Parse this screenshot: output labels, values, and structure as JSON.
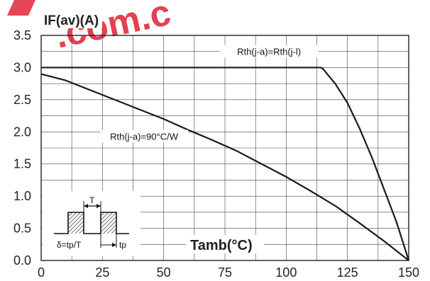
{
  "watermark": {
    "text": ".com.c",
    "color": "#e0263a"
  },
  "chart_data": {
    "type": "line",
    "title": "",
    "xlabel": "Tamb(°C)",
    "ylabel": "IF(av)(A)",
    "xlim": [
      0,
      150
    ],
    "ylim": [
      0,
      3.5
    ],
    "xticks": [
      0,
      25,
      50,
      75,
      100,
      125,
      150
    ],
    "yticks": [
      0.0,
      0.5,
      1.0,
      1.5,
      2.0,
      2.5,
      3.0,
      3.5
    ],
    "xtick_labels": [
      "0",
      "25",
      "50",
      "75",
      "100",
      "125",
      "150"
    ],
    "ytick_labels": [
      "0.0",
      "0.5",
      "1.0",
      "1.5",
      "2.0",
      "2.5",
      "3.0",
      "3.5"
    ],
    "grid": true,
    "minor_grid_x_step": 12.5,
    "minor_grid_y_step": 0.25,
    "legend": "none",
    "series": [
      {
        "name": "Rth(j-a)=Rth(j-l)",
        "x": [
          0,
          20,
          40,
          60,
          80,
          100,
          114,
          115,
          120,
          125,
          130,
          135,
          140,
          145,
          150
        ],
        "y": [
          3.0,
          3.0,
          3.0,
          3.0,
          3.0,
          3.0,
          3.0,
          2.98,
          2.75,
          2.45,
          2.05,
          1.6,
          1.1,
          0.6,
          0.0
        ]
      },
      {
        "name": "Rth(j-a)=90°C/W",
        "x": [
          0,
          10,
          20,
          30,
          40,
          50,
          60,
          70,
          80,
          90,
          100,
          110,
          120,
          130,
          140,
          150
        ],
        "y": [
          2.9,
          2.8,
          2.65,
          2.5,
          2.35,
          2.2,
          2.03,
          1.87,
          1.7,
          1.5,
          1.3,
          1.08,
          0.85,
          0.58,
          0.3,
          0.0
        ]
      }
    ],
    "annotations": [
      {
        "text": "Rth(j-a)=Rth(j-l)",
        "x": 93,
        "y": 3.22
      },
      {
        "text": "Rth(j-a)=90°C/W",
        "x": 42,
        "y": 1.9
      }
    ],
    "inset": {
      "period_label": "T",
      "tp_label": "tp",
      "duty_formula": "δ=tp/T"
    }
  }
}
